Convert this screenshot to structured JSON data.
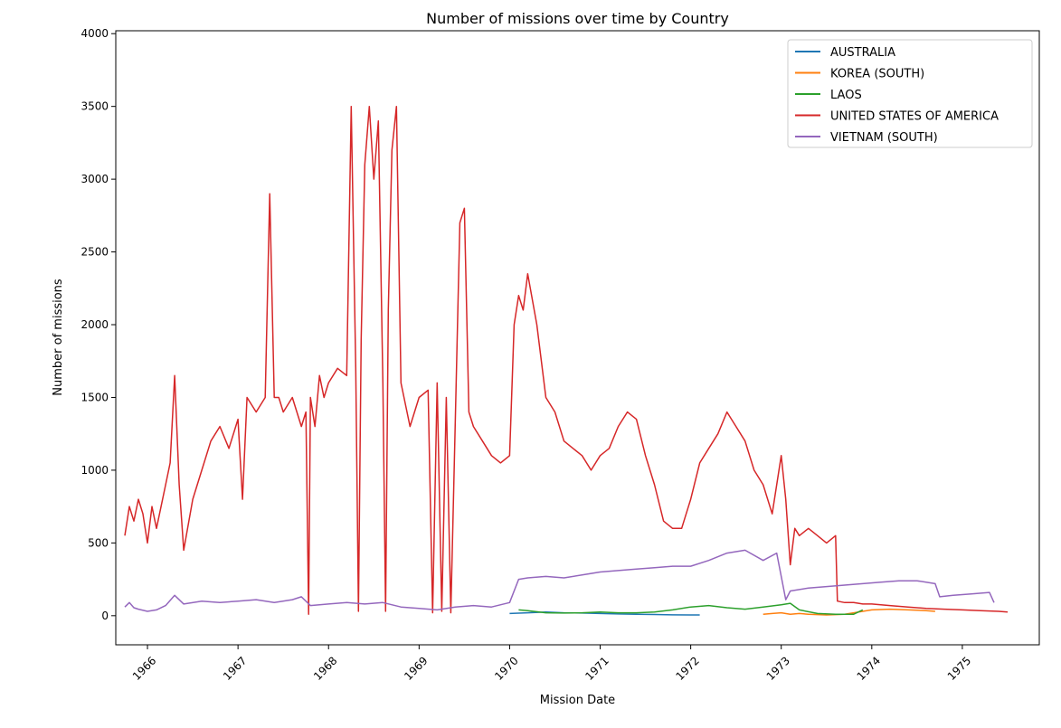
{
  "chart_data": {
    "type": "line",
    "title": "Number of missions over time by Country",
    "xlabel": "Mission Date",
    "ylabel": "Number of missions",
    "xlim": [
      1965.65,
      1975.85
    ],
    "ylim": [
      -200,
      4020
    ],
    "x_ticks": [
      1966,
      1967,
      1968,
      1969,
      1970,
      1971,
      1972,
      1973,
      1974,
      1975
    ],
    "x_tick_labels": [
      "1966",
      "1967",
      "1968",
      "1969",
      "1970",
      "1971",
      "1972",
      "1973",
      "1974",
      "1975"
    ],
    "y_ticks": [
      0,
      500,
      1000,
      1500,
      2000,
      2500,
      3000,
      3500,
      4000
    ],
    "y_tick_labels": [
      "0",
      "500",
      "1000",
      "1500",
      "2000",
      "2500",
      "3000",
      "3500",
      "4000"
    ],
    "grid": false,
    "legend_position": "top-right",
    "series": [
      {
        "name": "AUSTRALIA",
        "color": "#1f77b4",
        "x": [
          1970.0,
          1970.2,
          1970.4,
          1970.6,
          1970.8,
          1971.0,
          1971.2,
          1971.4,
          1971.6,
          1971.8,
          1972.0,
          1972.1
        ],
        "y": [
          15,
          20,
          25,
          20,
          18,
          15,
          12,
          10,
          8,
          6,
          5,
          5
        ]
      },
      {
        "name": "KOREA (SOUTH)",
        "color": "#ff7f0e",
        "x": [
          1972.8,
          1972.9,
          1973.0,
          1973.1,
          1973.2,
          1973.3,
          1973.5,
          1973.7,
          1973.9,
          1974.0,
          1974.2,
          1974.4,
          1974.6,
          1974.7
        ],
        "y": [
          10,
          15,
          20,
          10,
          15,
          10,
          5,
          10,
          30,
          40,
          45,
          40,
          35,
          30
        ]
      },
      {
        "name": "LAOS",
        "color": "#2ca02c",
        "x": [
          1970.1,
          1970.2,
          1970.4,
          1970.6,
          1970.8,
          1971.0,
          1971.2,
          1971.4,
          1971.6,
          1971.8,
          1972.0,
          1972.2,
          1972.4,
          1972.6,
          1972.8,
          1973.0,
          1973.1,
          1973.2,
          1973.4,
          1973.6,
          1973.8,
          1973.9
        ],
        "y": [
          40,
          35,
          20,
          18,
          20,
          25,
          20,
          20,
          25,
          40,
          60,
          70,
          55,
          45,
          60,
          75,
          85,
          40,
          15,
          10,
          10,
          40
        ]
      },
      {
        "name": "UNITED STATES OF AMERICA",
        "color": "#d62728",
        "x": [
          1965.75,
          1965.8,
          1965.85,
          1965.9,
          1965.95,
          1966.0,
          1966.05,
          1966.1,
          1966.2,
          1966.25,
          1966.3,
          1966.35,
          1966.4,
          1966.5,
          1966.6,
          1966.7,
          1966.8,
          1966.9,
          1967.0,
          1967.05,
          1967.1,
          1967.2,
          1967.3,
          1967.35,
          1967.4,
          1967.45,
          1967.5,
          1967.6,
          1967.7,
          1967.75,
          1967.78,
          1967.8,
          1967.85,
          1967.9,
          1967.95,
          1968.0,
          1968.1,
          1968.2,
          1968.25,
          1968.3,
          1968.33,
          1968.36,
          1968.4,
          1968.45,
          1968.5,
          1968.55,
          1968.6,
          1968.63,
          1968.66,
          1968.7,
          1968.75,
          1968.8,
          1968.9,
          1969.0,
          1969.1,
          1969.15,
          1969.2,
          1969.25,
          1969.3,
          1969.35,
          1969.4,
          1969.45,
          1969.5,
          1969.55,
          1969.6,
          1969.7,
          1969.8,
          1969.9,
          1970.0,
          1970.05,
          1970.1,
          1970.15,
          1970.2,
          1970.3,
          1970.4,
          1970.5,
          1970.6,
          1970.7,
          1970.8,
          1970.9,
          1971.0,
          1971.1,
          1971.2,
          1971.3,
          1971.4,
          1971.5,
          1971.6,
          1971.7,
          1971.8,
          1971.9,
          1972.0,
          1972.1,
          1972.2,
          1972.3,
          1972.4,
          1972.5,
          1972.6,
          1972.7,
          1972.8,
          1972.9,
          1973.0,
          1973.05,
          1973.1,
          1973.15,
          1973.2,
          1973.3,
          1973.4,
          1973.5,
          1973.6,
          1973.62,
          1973.7,
          1973.8,
          1973.9,
          1974.0,
          1974.2,
          1974.4,
          1974.6,
          1974.8,
          1975.0,
          1975.2,
          1975.4,
          1975.5
        ],
        "y": [
          550,
          750,
          650,
          800,
          700,
          500,
          750,
          600,
          900,
          1050,
          1650,
          900,
          450,
          800,
          1000,
          1200,
          1300,
          1150,
          1350,
          800,
          1500,
          1400,
          1500,
          2900,
          1500,
          1500,
          1400,
          1500,
          1300,
          1400,
          10,
          1500,
          1300,
          1650,
          1500,
          1600,
          1700,
          1650,
          3500,
          1700,
          30,
          1900,
          3100,
          3500,
          3000,
          3400,
          1600,
          30,
          2100,
          3200,
          3500,
          1600,
          1300,
          1500,
          1550,
          20,
          1600,
          30,
          1500,
          20,
          1350,
          2700,
          2800,
          1400,
          1300,
          1200,
          1100,
          1050,
          1100,
          2000,
          2200,
          2100,
          2350,
          2000,
          1500,
          1400,
          1200,
          1150,
          1100,
          1000,
          1100,
          1150,
          1300,
          1400,
          1350,
          1100,
          900,
          650,
          600,
          600,
          800,
          1050,
          1150,
          1250,
          1400,
          1300,
          1200,
          1000,
          900,
          700,
          1100,
          800,
          350,
          600,
          550,
          600,
          550,
          500,
          550,
          100,
          90,
          90,
          80,
          80,
          70,
          60,
          50,
          45,
          40,
          35,
          30,
          25
        ]
      },
      {
        "name": "VIETNAM (SOUTH)",
        "color": "#9467bd",
        "x": [
          1965.75,
          1965.8,
          1965.85,
          1965.9,
          1966.0,
          1966.1,
          1966.2,
          1966.3,
          1966.4,
          1966.6,
          1966.8,
          1967.0,
          1967.2,
          1967.4,
          1967.6,
          1967.7,
          1967.8,
          1968.0,
          1968.2,
          1968.4,
          1968.6,
          1968.8,
          1969.0,
          1969.2,
          1969.4,
          1969.6,
          1969.8,
          1970.0,
          1970.1,
          1970.2,
          1970.4,
          1970.6,
          1970.8,
          1971.0,
          1971.2,
          1971.4,
          1971.6,
          1971.8,
          1972.0,
          1972.2,
          1972.4,
          1972.6,
          1972.8,
          1972.95,
          1973.05,
          1973.1,
          1973.3,
          1973.5,
          1973.7,
          1973.9,
          1974.1,
          1974.3,
          1974.5,
          1974.7,
          1974.75,
          1974.9,
          1975.1,
          1975.3,
          1975.35
        ],
        "y": [
          60,
          90,
          55,
          45,
          30,
          40,
          70,
          140,
          80,
          100,
          90,
          100,
          110,
          90,
          110,
          130,
          70,
          80,
          90,
          80,
          90,
          60,
          50,
          40,
          60,
          70,
          60,
          90,
          250,
          260,
          270,
          260,
          280,
          300,
          310,
          320,
          330,
          340,
          340,
          380,
          430,
          450,
          380,
          430,
          110,
          170,
          190,
          200,
          210,
          220,
          230,
          240,
          240,
          220,
          130,
          140,
          150,
          160,
          90
        ]
      }
    ]
  }
}
